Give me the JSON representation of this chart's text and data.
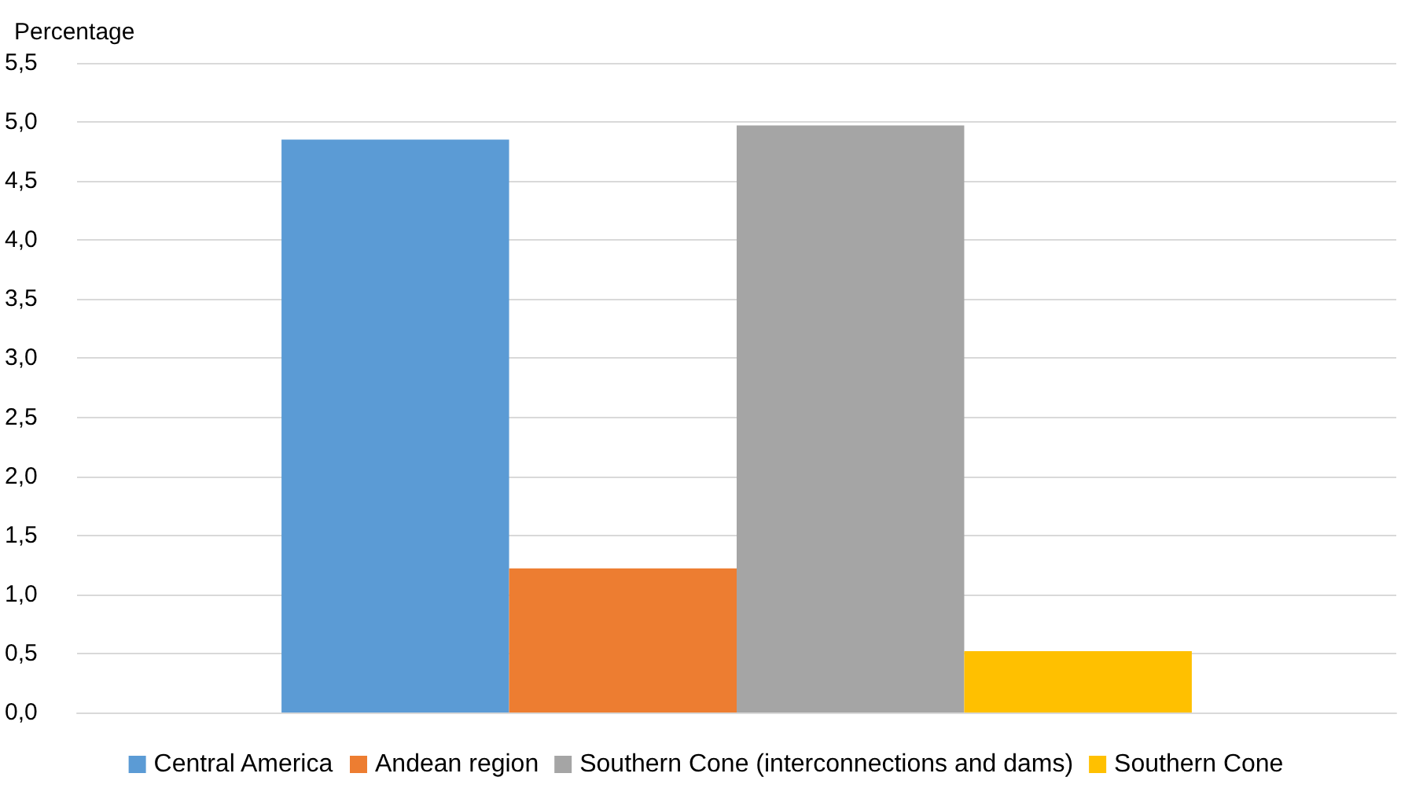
{
  "chart_data": {
    "type": "bar",
    "ylabel": "Percentage",
    "categories": [
      null
    ],
    "series": [
      {
        "name": "Central America",
        "color": "#5b9bd5",
        "values": [
          4.85
        ]
      },
      {
        "name": "Andean region",
        "color": "#ed7d31",
        "values": [
          1.22
        ]
      },
      {
        "name": "Southern Cone (interconnections and dams)",
        "color": "#a5a5a5",
        "values": [
          4.97
        ]
      },
      {
        "name": "Southern Cone",
        "color": "#ffc000",
        "values": [
          0.52
        ]
      }
    ],
    "ylim": [
      0,
      5.5
    ],
    "yticks": [
      {
        "value": 0,
        "label": "0,0"
      },
      {
        "value": 0.5,
        "label": "0,5"
      },
      {
        "value": 1,
        "label": "1,0"
      },
      {
        "value": 1.5,
        "label": "1,5"
      },
      {
        "value": 2,
        "label": "2,0"
      },
      {
        "value": 2.5,
        "label": "2,5"
      },
      {
        "value": 3,
        "label": "3,0"
      },
      {
        "value": 3.5,
        "label": "3,5"
      },
      {
        "value": 4,
        "label": "4,0"
      },
      {
        "value": 4.5,
        "label": "4,5"
      },
      {
        "value": 5,
        "label": "5,0"
      },
      {
        "value": 5.5,
        "label": "5,5"
      }
    ],
    "grid": "y",
    "legend": "bottom"
  }
}
